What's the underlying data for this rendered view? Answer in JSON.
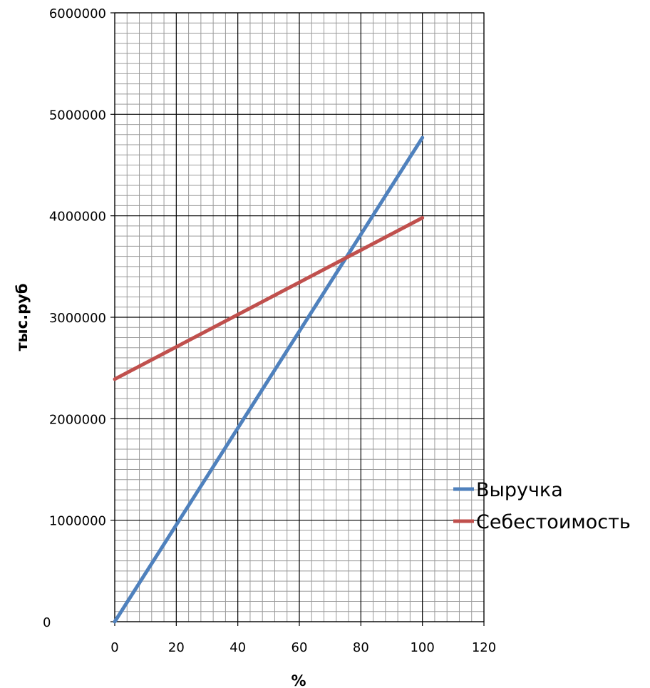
{
  "chart_data": {
    "type": "line",
    "title": "",
    "xlabel": "%",
    "ylabel": "тыс.руб",
    "xlim": [
      0,
      120
    ],
    "ylim": [
      0,
      6000000
    ],
    "x_ticks": [
      0,
      20,
      40,
      60,
      80,
      100,
      120
    ],
    "y_ticks": [
      0,
      1000000,
      2000000,
      3000000,
      4000000,
      5000000,
      6000000
    ],
    "x_tick_labels": [
      "0",
      "20",
      "40",
      "60",
      "80",
      "100",
      "120"
    ],
    "y_tick_labels": [
      "0",
      "1000000",
      "2000000",
      "3000000",
      "4000000",
      "5000000",
      "6000000"
    ],
    "x_minor_step": 4,
    "y_minor_step": 100000,
    "grid": true,
    "legend_position": "right",
    "series": [
      {
        "name": "Выручка",
        "color": "#4F81BD",
        "x": [
          0,
          100
        ],
        "y": [
          0,
          4770000
        ]
      },
      {
        "name": "Себестоимость",
        "color": "#C0504D",
        "x": [
          0,
          100
        ],
        "y": [
          2390000,
          3980000
        ]
      }
    ]
  }
}
